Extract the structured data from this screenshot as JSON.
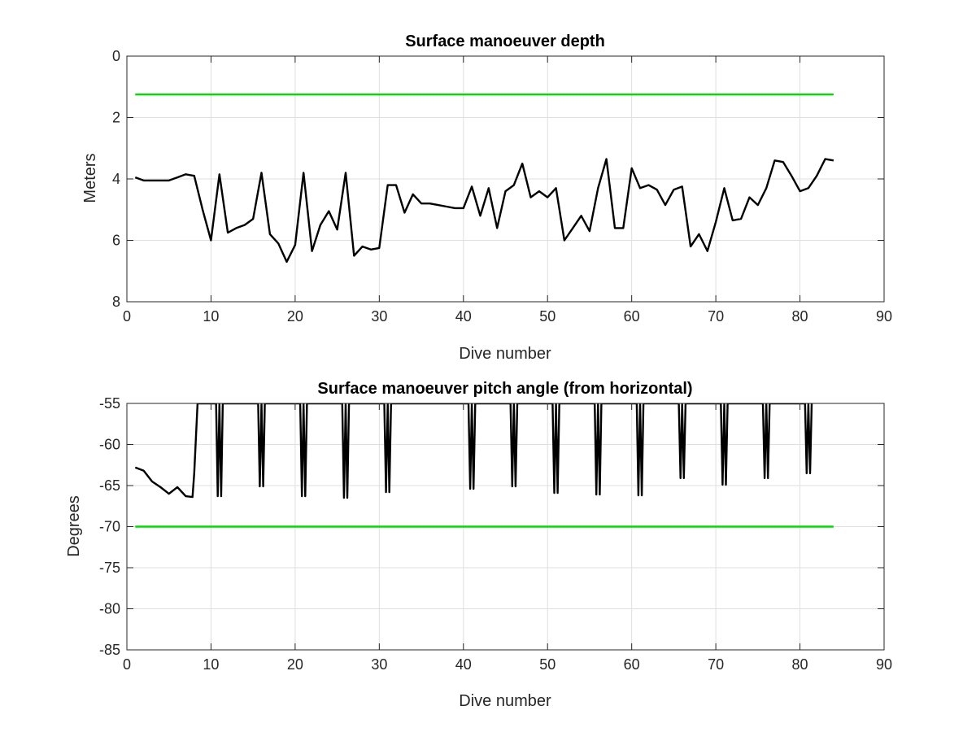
{
  "chart_data": [
    {
      "type": "line",
      "title": "Surface manoeuver depth",
      "xlabel": "Dive number",
      "ylabel": "Meters",
      "xlim": [
        0,
        90
      ],
      "ylim": [
        0,
        8
      ],
      "y_reversed": true,
      "grid": true,
      "xticks": [
        "0",
        "10",
        "20",
        "30",
        "40",
        "50",
        "60",
        "70",
        "80",
        "90"
      ],
      "yticks": [
        "0",
        "2",
        "4",
        "6",
        "8"
      ],
      "xtick_values": [
        0,
        10,
        20,
        30,
        40,
        50,
        60,
        70,
        80,
        90
      ],
      "ytick_values": [
        0,
        2,
        4,
        6,
        8
      ],
      "series": [
        {
          "color": "#000000",
          "x": [
            1,
            2,
            3,
            4,
            5,
            6,
            7,
            8,
            9,
            10,
            11,
            12,
            13,
            14,
            15,
            16,
            17,
            18,
            19,
            20,
            21,
            22,
            23,
            24,
            25,
            26,
            27,
            28,
            29,
            30,
            31,
            32,
            33,
            34,
            35,
            36,
            37,
            38,
            39,
            40,
            41,
            42,
            43,
            44,
            45,
            46,
            47,
            48,
            49,
            50,
            51,
            52,
            53,
            54,
            55,
            56,
            57,
            58,
            59,
            60,
            61,
            62,
            63,
            64,
            65,
            66,
            67,
            68,
            69,
            70,
            71,
            72,
            73,
            74,
            75,
            76,
            77,
            78,
            79,
            80,
            81,
            82,
            83,
            84
          ],
          "y": [
            3.95,
            4.05,
            4.05,
            4.05,
            4.05,
            3.95,
            3.85,
            3.9,
            5,
            6,
            3.85,
            5.75,
            5.6,
            5.5,
            5.3,
            3.8,
            5.8,
            6.1,
            6.7,
            6.15,
            3.8,
            6.35,
            5.5,
            5.05,
            5.65,
            3.8,
            6.5,
            6.2,
            6.3,
            6.25,
            4.2,
            4.2,
            5.1,
            4.5,
            4.8,
            4.8,
            4.85,
            4.9,
            4.95,
            4.95,
            4.25,
            5.2,
            4.3,
            5.6,
            4.4,
            4.2,
            3.5,
            4.6,
            4.4,
            4.6,
            4.3,
            6.0,
            5.6,
            5.2,
            5.7,
            4.3,
            3.35,
            5.6,
            5.6,
            3.65,
            4.3,
            4.2,
            4.35,
            4.85,
            4.35,
            4.25,
            6.2,
            5.8,
            6.35,
            5.4,
            4.3,
            5.35,
            5.3,
            4.6,
            4.85,
            4.3,
            3.4,
            3.45,
            3.9,
            4.4,
            4.3,
            3.9,
            3.35,
            3.4
          ]
        },
        {
          "color": "#00dd00",
          "x": [
            1,
            84
          ],
          "y": [
            1.25,
            1.25
          ]
        }
      ]
    },
    {
      "type": "line",
      "title": "Surface manoeuver pitch angle (from horizontal)",
      "xlabel": "Dive number",
      "ylabel": "Degrees",
      "xlim": [
        0,
        90
      ],
      "ylim": [
        -85,
        -55
      ],
      "grid": true,
      "xticks": [
        "0",
        "10",
        "20",
        "30",
        "40",
        "50",
        "60",
        "70",
        "80",
        "90"
      ],
      "yticks": [
        "-55",
        "-60",
        "-65",
        "-70",
        "-75",
        "-80",
        "-85"
      ],
      "xtick_values": [
        0,
        10,
        20,
        30,
        40,
        50,
        60,
        70,
        80,
        90
      ],
      "ytick_values": [
        -55,
        -60,
        -65,
        -70,
        -75,
        -80,
        -85
      ],
      "series": [
        {
          "color": "#000000",
          "x": [
            1,
            2,
            3,
            4,
            5,
            6,
            7,
            7.8,
            8,
            8.4,
            8.8,
            10.6,
            10.8,
            11,
            11.2,
            11.4,
            15.6,
            15.8,
            16,
            16.2,
            16.4,
            20.6,
            20.8,
            21,
            21.2,
            21.4,
            25.6,
            25.8,
            26,
            26.2,
            26.4,
            30.6,
            30.8,
            31,
            31.2,
            31.4,
            40.6,
            40.8,
            41,
            41.2,
            41.4,
            45.6,
            45.8,
            46,
            46.2,
            46.4,
            50.6,
            50.8,
            51,
            51.2,
            51.4,
            55.6,
            55.8,
            56,
            56.2,
            56.4,
            60.6,
            60.8,
            61,
            61.2,
            61.4,
            65.6,
            65.8,
            66,
            66.2,
            66.4,
            70.6,
            70.8,
            71,
            71.2,
            71.4,
            75.6,
            75.8,
            76,
            76.2,
            76.4,
            80.6,
            80.8,
            81,
            81.2,
            81.4
          ],
          "y": [
            -62.8,
            -63.2,
            -64.5,
            -65.2,
            -66,
            -65.2,
            -66.3,
            -66.4,
            -63.5,
            -55,
            -55,
            -55,
            -66.3,
            -55,
            -66.3,
            -55,
            -55,
            -65.1,
            -55,
            -65.1,
            -55,
            -55,
            -66.3,
            -55,
            -66.3,
            -55,
            -55,
            -66.5,
            -55,
            -66.5,
            -55,
            -55,
            -65.8,
            -55,
            -65.8,
            -55,
            -55,
            -65.4,
            -55,
            -65.4,
            -55,
            -55,
            -65.1,
            -55,
            -65.1,
            -55,
            -55,
            -65.9,
            -55,
            -65.9,
            -55,
            -55,
            -66.1,
            -55,
            -66.1,
            -55,
            -55,
            -66.2,
            -55,
            -66.2,
            -55,
            -55,
            -64.1,
            -55,
            -64.1,
            -55,
            -55,
            -64.9,
            -55,
            -64.9,
            -55,
            -55,
            -64.1,
            -55,
            -64.1,
            -55,
            -55,
            -63.5,
            -55,
            -63.5,
            -55
          ]
        },
        {
          "color": "#00dd00",
          "x": [
            1,
            84
          ],
          "y": [
            -70,
            -70
          ]
        }
      ]
    }
  ]
}
